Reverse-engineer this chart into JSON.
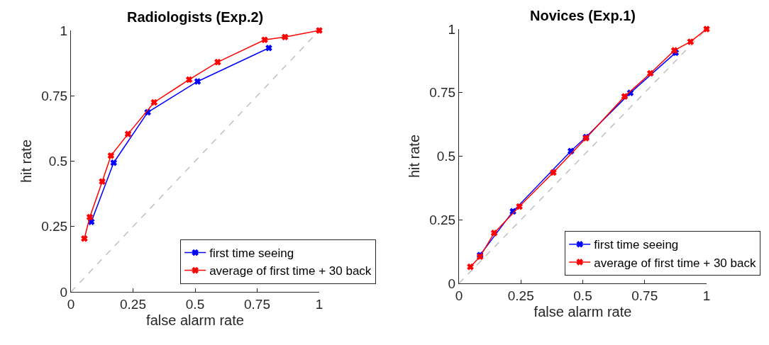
{
  "chart_data": [
    {
      "type": "line",
      "title": "Radiologists (Exp.2)",
      "xlabel": "false alarm rate",
      "ylabel": "hit rate",
      "xlim": [
        0,
        1
      ],
      "ylim": [
        0,
        1
      ],
      "xticks": [
        0,
        0.25,
        0.5,
        0.75,
        1
      ],
      "yticks": [
        0,
        0.25,
        0.5,
        0.75,
        1
      ],
      "legend": "bottom right",
      "marker": "cross",
      "series": [
        {
          "x": [
            0,
            1
          ],
          "values": [
            0,
            1
          ],
          "color": "#bfbfbf",
          "line_style": "dashed",
          "marker": "none"
        },
        {
          "name": "first time seeing",
          "color": "#0000ff",
          "x": [
            0.082,
            0.172,
            0.309,
            0.51,
            0.797
          ],
          "values": [
            0.268,
            0.494,
            0.687,
            0.805,
            0.933
          ]
        },
        {
          "name": "average of first time + 30 back",
          "color": "#ff0000",
          "x": [
            0.054,
            0.076,
            0.126,
            0.161,
            0.23,
            0.335,
            0.476,
            0.591,
            0.78,
            0.862,
            1
          ],
          "values": [
            0.204,
            0.286,
            0.422,
            0.521,
            0.604,
            0.725,
            0.812,
            0.879,
            0.964,
            0.975,
            1
          ]
        }
      ]
    },
    {
      "type": "line",
      "title": "Novices (Exp.1)",
      "xlabel": "false alarm rate",
      "ylabel": "hit rate",
      "xlim": [
        0,
        1
      ],
      "ylim": [
        0,
        1
      ],
      "xticks": [
        0,
        0.25,
        0.5,
        0.75,
        1
      ],
      "yticks": [
        0,
        0.25,
        0.5,
        0.75,
        1
      ],
      "legend": "bottom right",
      "marker": "cross",
      "series": [
        {
          "x": [
            0,
            1
          ],
          "values": [
            0,
            1
          ],
          "color": "#bfbfbf",
          "line_style": "dashed",
          "marker": "none"
        },
        {
          "name": "first time seeing",
          "color": "#0000ff",
          "x": [
            0.085,
            0.218,
            0.452,
            0.513,
            0.692,
            0.875
          ],
          "values": [
            0.111,
            0.283,
            0.52,
            0.575,
            0.749,
            0.907
          ]
        },
        {
          "name": "average of first time + 30 back",
          "color": "#ff0000",
          "x": [
            0.046,
            0.085,
            0.142,
            0.244,
            0.381,
            0.513,
            0.669,
            0.773,
            0.87,
            0.935,
            1
          ],
          "values": [
            0.065,
            0.105,
            0.198,
            0.302,
            0.436,
            0.571,
            0.735,
            0.826,
            0.916,
            0.95,
            1
          ]
        }
      ]
    }
  ]
}
